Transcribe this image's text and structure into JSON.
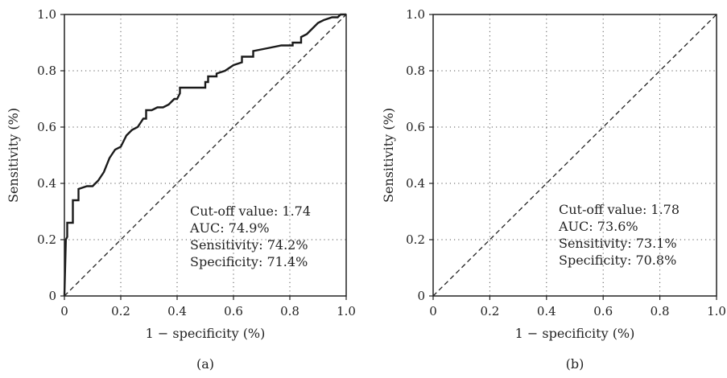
{
  "chart_data": [
    {
      "type": "line",
      "panel_label": "(a)",
      "xlabel": "1 − specificity (%)",
      "ylabel": "Sensitivity (%)",
      "xlim": [
        0,
        1.0
      ],
      "ylim": [
        0,
        1.0
      ],
      "xticks": [
        "0",
        "0.2",
        "0.4",
        "0.6",
        "0.8",
        "1.0"
      ],
      "yticks": [
        "0",
        "0.2",
        "0.4",
        "0.6",
        "0.8",
        "1.0"
      ],
      "grid": "dotted",
      "annotations": [
        "Cut-off value: 1.74",
        "AUC: 74.9%",
        "Sensitivity: 74.2%",
        "Specificity: 71.4%"
      ],
      "series": [
        {
          "style": "solid-step",
          "x": [
            0,
            0.005,
            0.01,
            0.01,
            0.03,
            0.03,
            0.05,
            0.05,
            0.08,
            0.1,
            0.12,
            0.14,
            0.16,
            0.18,
            0.2,
            0.22,
            0.24,
            0.26,
            0.28,
            0.29,
            0.29,
            0.31,
            0.33,
            0.35,
            0.37,
            0.39,
            0.4,
            0.41,
            0.41,
            0.44,
            0.47,
            0.5,
            0.5,
            0.51,
            0.51,
            0.54,
            0.54,
            0.57,
            0.6,
            0.63,
            0.63,
            0.67,
            0.67,
            0.72,
            0.77,
            0.81,
            0.81,
            0.84,
            0.84,
            0.86,
            0.88,
            0.9,
            0.92,
            0.95,
            0.97,
            0.98,
            1.0
          ],
          "y": [
            0,
            0.2,
            0.21,
            0.26,
            0.26,
            0.34,
            0.34,
            0.38,
            0.39,
            0.39,
            0.41,
            0.44,
            0.49,
            0.52,
            0.53,
            0.57,
            0.59,
            0.6,
            0.63,
            0.63,
            0.66,
            0.66,
            0.67,
            0.67,
            0.68,
            0.7,
            0.7,
            0.72,
            0.74,
            0.74,
            0.74,
            0.74,
            0.76,
            0.76,
            0.78,
            0.78,
            0.79,
            0.8,
            0.82,
            0.83,
            0.85,
            0.85,
            0.87,
            0.88,
            0.89,
            0.89,
            0.9,
            0.9,
            0.92,
            0.93,
            0.95,
            0.97,
            0.98,
            0.99,
            0.99,
            1.0,
            1.0
          ]
        },
        {
          "style": "dashed",
          "x": [
            0,
            1.0
          ],
          "y": [
            0,
            1.0
          ]
        }
      ]
    },
    {
      "type": "line",
      "panel_label": "(b)",
      "xlabel": "1 − specificity (%)",
      "ylabel": "Sensitivity (%)",
      "xlim": [
        0,
        1.0
      ],
      "ylim": [
        0,
        1.0
      ],
      "xticks": [
        "0",
        "0.2",
        "0.4",
        "0.6",
        "0.8",
        "1.0"
      ],
      "yticks": [
        "0",
        "0.2",
        "0.4",
        "0.6",
        "0.8",
        "1.0"
      ],
      "grid": "dotted",
      "annotations": [
        "Cut-off value: 1.78",
        "AUC: 73.6%",
        "Sensitivity: 73.1%",
        "Specificity: 70.8%"
      ],
      "series": [
        {
          "style": "dashed",
          "x": [
            0,
            1.0
          ],
          "y": [
            0,
            1.0
          ]
        }
      ]
    }
  ]
}
